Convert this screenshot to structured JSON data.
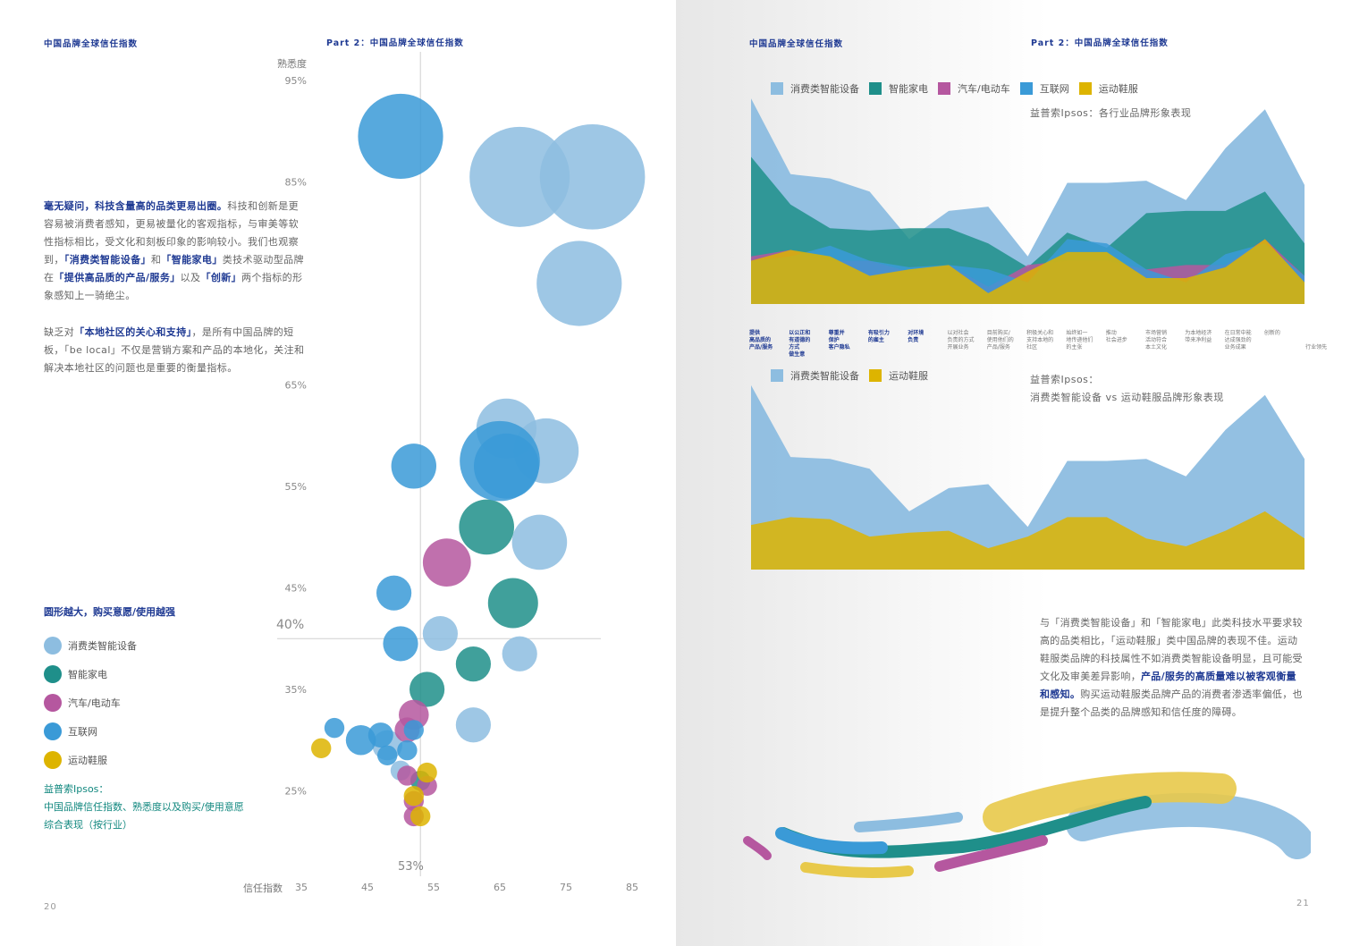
{
  "left_page": {
    "header_left": "中国品牌全球信任指数",
    "header_right": "Part 2：中国品牌全球信任指数",
    "page_number": "20",
    "paragraph1": [
      {
        "text": "毫无疑问，科技含量高的品类更易出圈。",
        "bold": true
      },
      {
        "text": "科技和创新是更容易被消费者感知，更易被量化的客观指标，与审美等软性指标相比，受文化和刻板印象的影响较小。我们也观察到，",
        "bold": false
      },
      {
        "text": "「消费类智能设备」",
        "bold": true
      },
      {
        "text": "和",
        "bold": false
      },
      {
        "text": "「智能家电」",
        "bold": true
      },
      {
        "text": "类技术驱动型品牌在",
        "bold": false
      },
      {
        "text": "「提供高品质的产品/服务」",
        "bold": true
      },
      {
        "text": "以及",
        "bold": false
      },
      {
        "text": "「创新」",
        "bold": true
      },
      {
        "text": "两个指标的形象感知上一骑绝尘。",
        "bold": false
      }
    ],
    "paragraph2": [
      {
        "text": "缺乏对",
        "bold": false
      },
      {
        "text": "「本地社区的关心和支持」",
        "bold": true
      },
      {
        "text": "，是所有中国品牌的短板，「be local」不仅是营销方案和产品的本地化，关注和解决本地社区的问题也是重要的衡量指标。",
        "bold": false
      }
    ],
    "legend_title": "圆形越大，购买意愿/使用越强",
    "legend": [
      {
        "label": "消费类智能设备",
        "color": "#8dbde0"
      },
      {
        "label": "智能家电",
        "color": "#1f8f8a"
      },
      {
        "label": "汽车/电动车",
        "color": "#b5579f"
      },
      {
        "label": "互联网",
        "color": "#3a9ad7"
      },
      {
        "label": "运动鞋服",
        "color": "#ddb400"
      }
    ],
    "source_lines": [
      "益普索Ipsos：",
      "中国品牌信任指数、熟悉度以及购买/使用意愿",
      "综合表现（按行业）"
    ]
  },
  "chart_data": [
    {
      "type": "scatter",
      "title": "",
      "xlabel": "信任指数",
      "ylabel": "熟悉度",
      "xlim": [
        35,
        85
      ],
      "ylim": [
        20,
        95
      ],
      "x_ticks": [
        "35",
        "45",
        "55",
        "65",
        "75",
        "85"
      ],
      "y_ticks": [
        "95%",
        "85%",
        "65%",
        "55%",
        "45%",
        "35%",
        "25%"
      ],
      "reference_lines": {
        "x": 53,
        "x_label": "53%",
        "y": 40,
        "y_label": "40%"
      },
      "series": [
        {
          "name": "消费类智能设备",
          "color": "#8dbde0",
          "points": [
            {
              "x": 68,
              "y": 85.5,
              "size": 10
            },
            {
              "x": 79,
              "y": 85.5,
              "size": 10.5
            },
            {
              "x": 77,
              "y": 75,
              "size": 8.5
            },
            {
              "x": 66,
              "y": 60.7,
              "size": 6
            },
            {
              "x": 72,
              "y": 58.5,
              "size": 6.5
            },
            {
              "x": 71,
              "y": 49.5,
              "size": 5.5
            },
            {
              "x": 56,
              "y": 40.5,
              "size": 3.5
            },
            {
              "x": 68,
              "y": 38.5,
              "size": 3.5
            },
            {
              "x": 61,
              "y": 31.5,
              "size": 3.5
            },
            {
              "x": 48,
              "y": 29.5,
              "size": 3
            },
            {
              "x": 50,
              "y": 27,
              "size": 2
            }
          ]
        },
        {
          "name": "智能家电",
          "color": "#1f8f8a",
          "points": [
            {
              "x": 63,
              "y": 51,
              "size": 5.5
            },
            {
              "x": 67,
              "y": 43.5,
              "size": 5
            },
            {
              "x": 61,
              "y": 37.5,
              "size": 3.5
            },
            {
              "x": 54,
              "y": 35,
              "size": 3.5
            },
            {
              "x": 53,
              "y": 26,
              "size": 2
            }
          ]
        },
        {
          "name": "汽车/电动车",
          "color": "#b5579f",
          "points": [
            {
              "x": 57,
              "y": 47.5,
              "size": 4.8
            },
            {
              "x": 52,
              "y": 32.5,
              "size": 3
            },
            {
              "x": 51,
              "y": 31,
              "size": 2.5
            },
            {
              "x": 51,
              "y": 26.5,
              "size": 2
            },
            {
              "x": 54,
              "y": 25.5,
              "size": 2
            },
            {
              "x": 52,
              "y": 24,
              "size": 2
            },
            {
              "x": 52,
              "y": 22.5,
              "size": 2
            }
          ]
        },
        {
          "name": "互联网",
          "color": "#3a9ad7",
          "points": [
            {
              "x": 50,
              "y": 89.5,
              "size": 8.5
            },
            {
              "x": 52,
              "y": 57,
              "size": 4.5
            },
            {
              "x": 65,
              "y": 57.5,
              "size": 8
            },
            {
              "x": 66,
              "y": 57,
              "size": 6.5
            },
            {
              "x": 49,
              "y": 44.5,
              "size": 3.5
            },
            {
              "x": 50,
              "y": 39.5,
              "size": 3.5
            },
            {
              "x": 40,
              "y": 31.2,
              "size": 2
            },
            {
              "x": 44,
              "y": 30,
              "size": 3
            },
            {
              "x": 47,
              "y": 30.5,
              "size": 2.5
            },
            {
              "x": 52,
              "y": 31,
              "size": 2
            },
            {
              "x": 51,
              "y": 29,
              "size": 2
            },
            {
              "x": 48,
              "y": 28.5,
              "size": 2
            }
          ]
        },
        {
          "name": "运动鞋服",
          "color": "#ddb400",
          "points": [
            {
              "x": 38,
              "y": 29.2,
              "size": 2
            },
            {
              "x": 54,
              "y": 26.8,
              "size": 2
            },
            {
              "x": 52,
              "y": 24.5,
              "size": 2
            },
            {
              "x": 53,
              "y": 22.5,
              "size": 2
            }
          ]
        }
      ]
    },
    {
      "type": "area",
      "title": "益普索Ipsos：各行业品牌形象表现",
      "xlabel": "",
      "ylabel": "",
      "categories": [
        "提供高品质的产品/服务",
        "以公正和有道德的方式做生意",
        "尊重并保护客户隐私",
        "有吸引力的雇主",
        "对环境负责",
        "以对社会负责的方式开展业务",
        "目前购买/使用他们的产品/服务",
        "积极关心和支持本地的社区",
        "始终如一地传递他们的主张",
        "推动社会进步",
        "市场营销活动符合本土文化",
        "为本地经济带来净利益",
        "在日常中能达成强劲的业务成果",
        "创新的",
        "行业领先"
      ],
      "ylim": [
        0,
        100
      ],
      "series": [
        {
          "name": "消费类智能设备",
          "color": "#8dbde0",
          "values": [
            95,
            60,
            58,
            52,
            30,
            43,
            45,
            22,
            56,
            56,
            57,
            48,
            72,
            90,
            55
          ]
        },
        {
          "name": "智能家电",
          "color": "#1f8f8a",
          "values": [
            68,
            46,
            35,
            34,
            35,
            35,
            28,
            17,
            33,
            26,
            42,
            43,
            43,
            52,
            28
          ]
        },
        {
          "name": "汽车/电动车",
          "color": "#b5579f",
          "values": [
            22,
            25,
            20,
            20,
            15,
            18,
            8,
            18,
            20,
            20,
            16,
            18,
            18,
            30,
            13
          ]
        },
        {
          "name": "互联网",
          "color": "#3a9ad7",
          "values": [
            20,
            22,
            27,
            20,
            17,
            18,
            16,
            10,
            30,
            28,
            16,
            10,
            23,
            28,
            13
          ]
        },
        {
          "name": "运动鞋服",
          "color": "#ddb400",
          "values": [
            20,
            25,
            22,
            13,
            16,
            18,
            5,
            15,
            24,
            24,
            12,
            12,
            17,
            30,
            10
          ]
        }
      ]
    },
    {
      "type": "area",
      "title": "益普索Ipsos：消费类智能设备 vs 运动鞋服品牌形象表现",
      "xlabel": "",
      "ylabel": "",
      "ylim": [
        0,
        100
      ],
      "series": [
        {
          "name": "消费类智能设备",
          "color": "#8dbde0",
          "values": [
            95,
            58,
            57,
            52,
            30,
            42,
            44,
            22,
            56,
            56,
            57,
            48,
            72,
            90,
            57
          ]
        },
        {
          "name": "运动鞋服",
          "color": "#ddb400",
          "values": [
            23,
            27,
            26,
            17,
            19,
            20,
            11,
            17,
            27,
            27,
            16,
            12,
            20,
            30,
            16
          ]
        }
      ]
    }
  ],
  "right_page": {
    "header_left": "中国品牌全球信任指数",
    "header_right": "Part 2：中国品牌全球信任指数",
    "page_number": "21",
    "top_legend": [
      "消费类智能设备",
      "智能家电",
      "汽车/电动车",
      "互联网",
      "运动鞋服"
    ],
    "top_caption": "益普索Ipsos：各行业品牌形象表现",
    "bottom_legend": [
      "消费类智能设备",
      "运动鞋服"
    ],
    "bottom_caption_line1": "益普索Ipsos：",
    "bottom_caption_line2": "消费类智能设备 vs 运动鞋服品牌形象表现",
    "category_labels": [
      {
        "text": "提供\n高品质的\n产品/服务",
        "bold": true
      },
      {
        "text": "以公正和\n有道德的\n方式\n做生意",
        "bold": true
      },
      {
        "text": "尊重并\n保护\n客户隐私",
        "bold": true
      },
      {
        "text": "有吸引力\n的雇主",
        "bold": true
      },
      {
        "text": "对环境\n负责",
        "bold": true
      },
      {
        "text": "以对社会\n负责的方式\n开展业务",
        "bold": false
      },
      {
        "text": "目前购买/\n使用他们的\n产品/服务",
        "bold": false
      },
      {
        "text": "积极关心和\n支持本地的\n社区",
        "bold": false
      },
      {
        "text": "始终如一\n地传递他们\n的主张",
        "bold": false
      },
      {
        "text": "推动\n社会进步",
        "bold": false
      },
      {
        "text": "市场营销\n活动符合\n本土文化",
        "bold": false
      },
      {
        "text": "为本地经济\n带来净利益",
        "bold": false
      },
      {
        "text": "在日常中能\n达成强劲的\n业务成果",
        "bold": false
      },
      {
        "text": "创新的",
        "bold": false
      },
      {
        "text": "\n\n行业领先",
        "bold": false
      }
    ],
    "paragraph": [
      {
        "text": "与「消费类智能设备」和「智能家电」此类科技水平要求较高的品类相比，「运动鞋服」类中国品牌的表现不佳。运动鞋服类品牌的科技属性不如消费类智能设备明显，且可能受文化及审美差异影响，",
        "bold": false
      },
      {
        "text": "产品/服务的高质量难以被客观衡量和感知。",
        "bold": true
      },
      {
        "text": "购买运动鞋服类品牌产品的消费者渗透率偏低，也是提升整个品类的品牌感知和信任度的障碍。",
        "bold": false
      }
    ]
  }
}
